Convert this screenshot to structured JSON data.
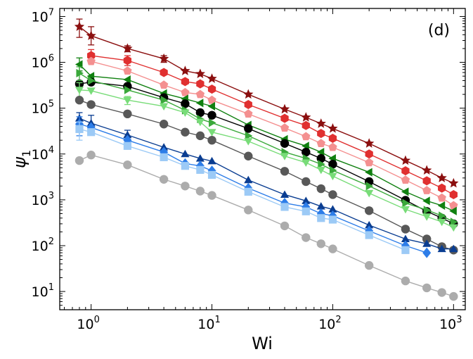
{
  "chart_data": {
    "type": "scatter",
    "xlabel": "Wi",
    "ylabel_main": "ψ",
    "ylabel_sub": "1",
    "panel_label": "(d)",
    "x_scale": "log",
    "y_scale": "log",
    "xlim": [
      0.55,
      1250
    ],
    "ylim": [
      4,
      15000000
    ],
    "x_ticks": [
      {
        "base": "10",
        "exp": "0",
        "value": 1
      },
      {
        "base": "10",
        "exp": "1",
        "value": 10
      },
      {
        "base": "10",
        "exp": "2",
        "value": 100
      },
      {
        "base": "10",
        "exp": "3",
        "value": 1000
      }
    ],
    "y_ticks": [
      {
        "base": "10",
        "exp": "1",
        "value": 10
      },
      {
        "base": "10",
        "exp": "2",
        "value": 100
      },
      {
        "base": "10",
        "exp": "3",
        "value": 1000
      },
      {
        "base": "10",
        "exp": "4",
        "value": 10000
      },
      {
        "base": "10",
        "exp": "5",
        "value": 100000
      },
      {
        "base": "10",
        "exp": "6",
        "value": 1000000
      },
      {
        "base": "10",
        "exp": "7",
        "value": 10000000
      }
    ],
    "grid": false,
    "series": [
      {
        "color": "#8b0f0f",
        "marker": "star",
        "x": [
          0.8,
          1,
          2,
          4,
          6,
          8,
          10,
          20,
          40,
          60,
          80,
          100,
          200,
          400,
          600,
          800,
          1000
        ],
        "y": [
          6000000,
          3800000,
          2000000,
          1200000,
          650000,
          560000,
          440000,
          200000,
          95000,
          63000,
          46000,
          36000,
          17000,
          7200,
          4400,
          3000,
          2300
        ],
        "errors": [
          [
            0.8,
            3500000,
            8800000
          ],
          [
            1,
            2400000,
            6000000
          ],
          [
            2,
            1700000,
            2300000
          ],
          [
            4,
            1000000,
            1400000
          ]
        ]
      },
      {
        "color": "#e03030",
        "marker": "hexagon",
        "x": [
          1,
          2,
          4,
          6,
          8,
          10,
          20,
          40,
          60,
          80,
          100,
          200,
          400,
          600,
          800,
          1000
        ],
        "y": [
          1400000,
          1100000,
          600000,
          380000,
          340000,
          260000,
          120000,
          60000,
          42000,
          28000,
          22000,
          10000,
          4300,
          2600,
          1800,
          1300
        ],
        "errors": [
          [
            1,
            1000000,
            1900000
          ],
          [
            2,
            850000,
            1400000
          ]
        ]
      },
      {
        "color": "#f49090",
        "marker": "pentagon",
        "x": [
          1,
          2,
          4,
          6,
          8,
          10,
          20,
          40,
          60,
          80,
          100,
          200,
          400,
          600,
          800,
          1000
        ],
        "y": [
          1050000,
          650000,
          320000,
          220000,
          200000,
          150000,
          75000,
          37000,
          24000,
          17000,
          14000,
          6500,
          2700,
          1600,
          1100,
          750
        ],
        "errors": []
      },
      {
        "color": "#108010",
        "marker": "triangle-left",
        "x": [
          0.8,
          1,
          2,
          4,
          6,
          8,
          10,
          20,
          40,
          60,
          80,
          100,
          200,
          400,
          600,
          800,
          1000
        ],
        "y": [
          900000,
          500000,
          420000,
          210000,
          160000,
          130000,
          110000,
          43000,
          21000,
          15000,
          11000,
          8000,
          4000,
          1500,
          950,
          750,
          570
        ],
        "errors": [
          [
            0.8,
            650000,
            1250000
          ]
        ]
      },
      {
        "color": "#000000",
        "marker": "circle",
        "x": [
          0.8,
          1,
          2,
          4,
          6,
          8,
          10,
          20,
          40,
          60,
          80,
          100,
          200,
          400,
          600,
          800,
          1000
        ],
        "y": [
          340000,
          370000,
          300000,
          170000,
          125000,
          80000,
          70000,
          36000,
          17000,
          11000,
          8000,
          6000,
          2500,
          980,
          560,
          400,
          300
        ],
        "errors": []
      },
      {
        "color": "#3aa83a",
        "marker": "triangle-right",
        "x": [
          0.8,
          1,
          2,
          4,
          6,
          8,
          10,
          20,
          40,
          60,
          80,
          100,
          200,
          400,
          600,
          800,
          1000
        ],
        "y": [
          580000,
          400000,
          250000,
          150000,
          90000,
          58000,
          48000,
          25000,
          11000,
          8000,
          6000,
          4400,
          2000,
          850,
          600,
          450,
          330
        ],
        "errors": [
          [
            0.8,
            400000,
            800000
          ]
        ]
      },
      {
        "color": "#78dc78",
        "marker": "triangle-down",
        "x": [
          0.8,
          1,
          2,
          4,
          6,
          8,
          10,
          20,
          40,
          60,
          80,
          100,
          200,
          400,
          600,
          800,
          1000
        ],
        "y": [
          250000,
          240000,
          150000,
          110000,
          80000,
          50000,
          30000,
          19000,
          9000,
          6500,
          4500,
          3300,
          1400,
          620,
          430,
          330,
          250
        ],
        "errors": [
          [
            0.8,
            170000,
            360000
          ],
          [
            2,
            120000,
            180000
          ]
        ]
      },
      {
        "color": "#585858",
        "marker": "circle",
        "x": [
          0.8,
          1,
          2,
          4,
          6,
          8,
          10,
          20,
          40,
          60,
          80,
          100,
          200,
          400,
          600,
          800,
          1000
        ],
        "y": [
          150000,
          120000,
          75000,
          45000,
          30000,
          25000,
          20000,
          9000,
          4200,
          2500,
          1750,
          1300,
          580,
          230,
          140,
          95,
          80
        ],
        "errors": []
      },
      {
        "color": "#0a3d91",
        "marker": "triangle-up",
        "x": [
          0.8,
          1,
          2,
          4,
          6,
          8,
          10,
          20,
          40,
          60,
          80,
          100,
          200,
          400,
          600,
          800,
          1000
        ],
        "y": [
          60000,
          47000,
          26000,
          14000,
          10000,
          8000,
          7000,
          2700,
          1300,
          950,
          720,
          620,
          280,
          140,
          110,
          85,
          85
        ],
        "errors": [
          [
            0.8,
            30000,
            80000
          ],
          [
            1,
            28000,
            70000
          ],
          [
            2,
            20000,
            33000
          ]
        ]
      },
      {
        "color": "#2d7de8",
        "marker": "diamond",
        "x": [
          0.8,
          1,
          2,
          4,
          6,
          8,
          10,
          20,
          40,
          60,
          80,
          100,
          200,
          400,
          600
        ],
        "y": [
          45000,
          38000,
          20000,
          11000,
          6200,
          5500,
          4300,
          1800,
          850,
          700,
          500,
          450,
          210,
          100,
          70
        ],
        "errors": [
          [
            0.8,
            25000,
            65000
          ]
        ]
      },
      {
        "color": "#9ccaf6",
        "marker": "square",
        "x": [
          0.8,
          1,
          2,
          4,
          6,
          8,
          10,
          20,
          40,
          60,
          80,
          100,
          200,
          400
        ],
        "y": [
          35000,
          30000,
          15000,
          8500,
          5500,
          4500,
          3500,
          1500,
          700,
          560,
          400,
          370,
          170,
          80
        ],
        "errors": [
          [
            0.8,
            20000,
            50000
          ]
        ]
      },
      {
        "color": "#acacac",
        "marker": "circle",
        "x": [
          0.8,
          1,
          2,
          4,
          6,
          8,
          10,
          20,
          40,
          60,
          80,
          100,
          200,
          400,
          600,
          800,
          1000
        ],
        "y": [
          7200,
          9500,
          5800,
          2800,
          2000,
          1550,
          1250,
          600,
          270,
          150,
          110,
          85,
          37,
          17,
          12,
          9.5,
          7.8
        ],
        "errors": []
      }
    ]
  }
}
